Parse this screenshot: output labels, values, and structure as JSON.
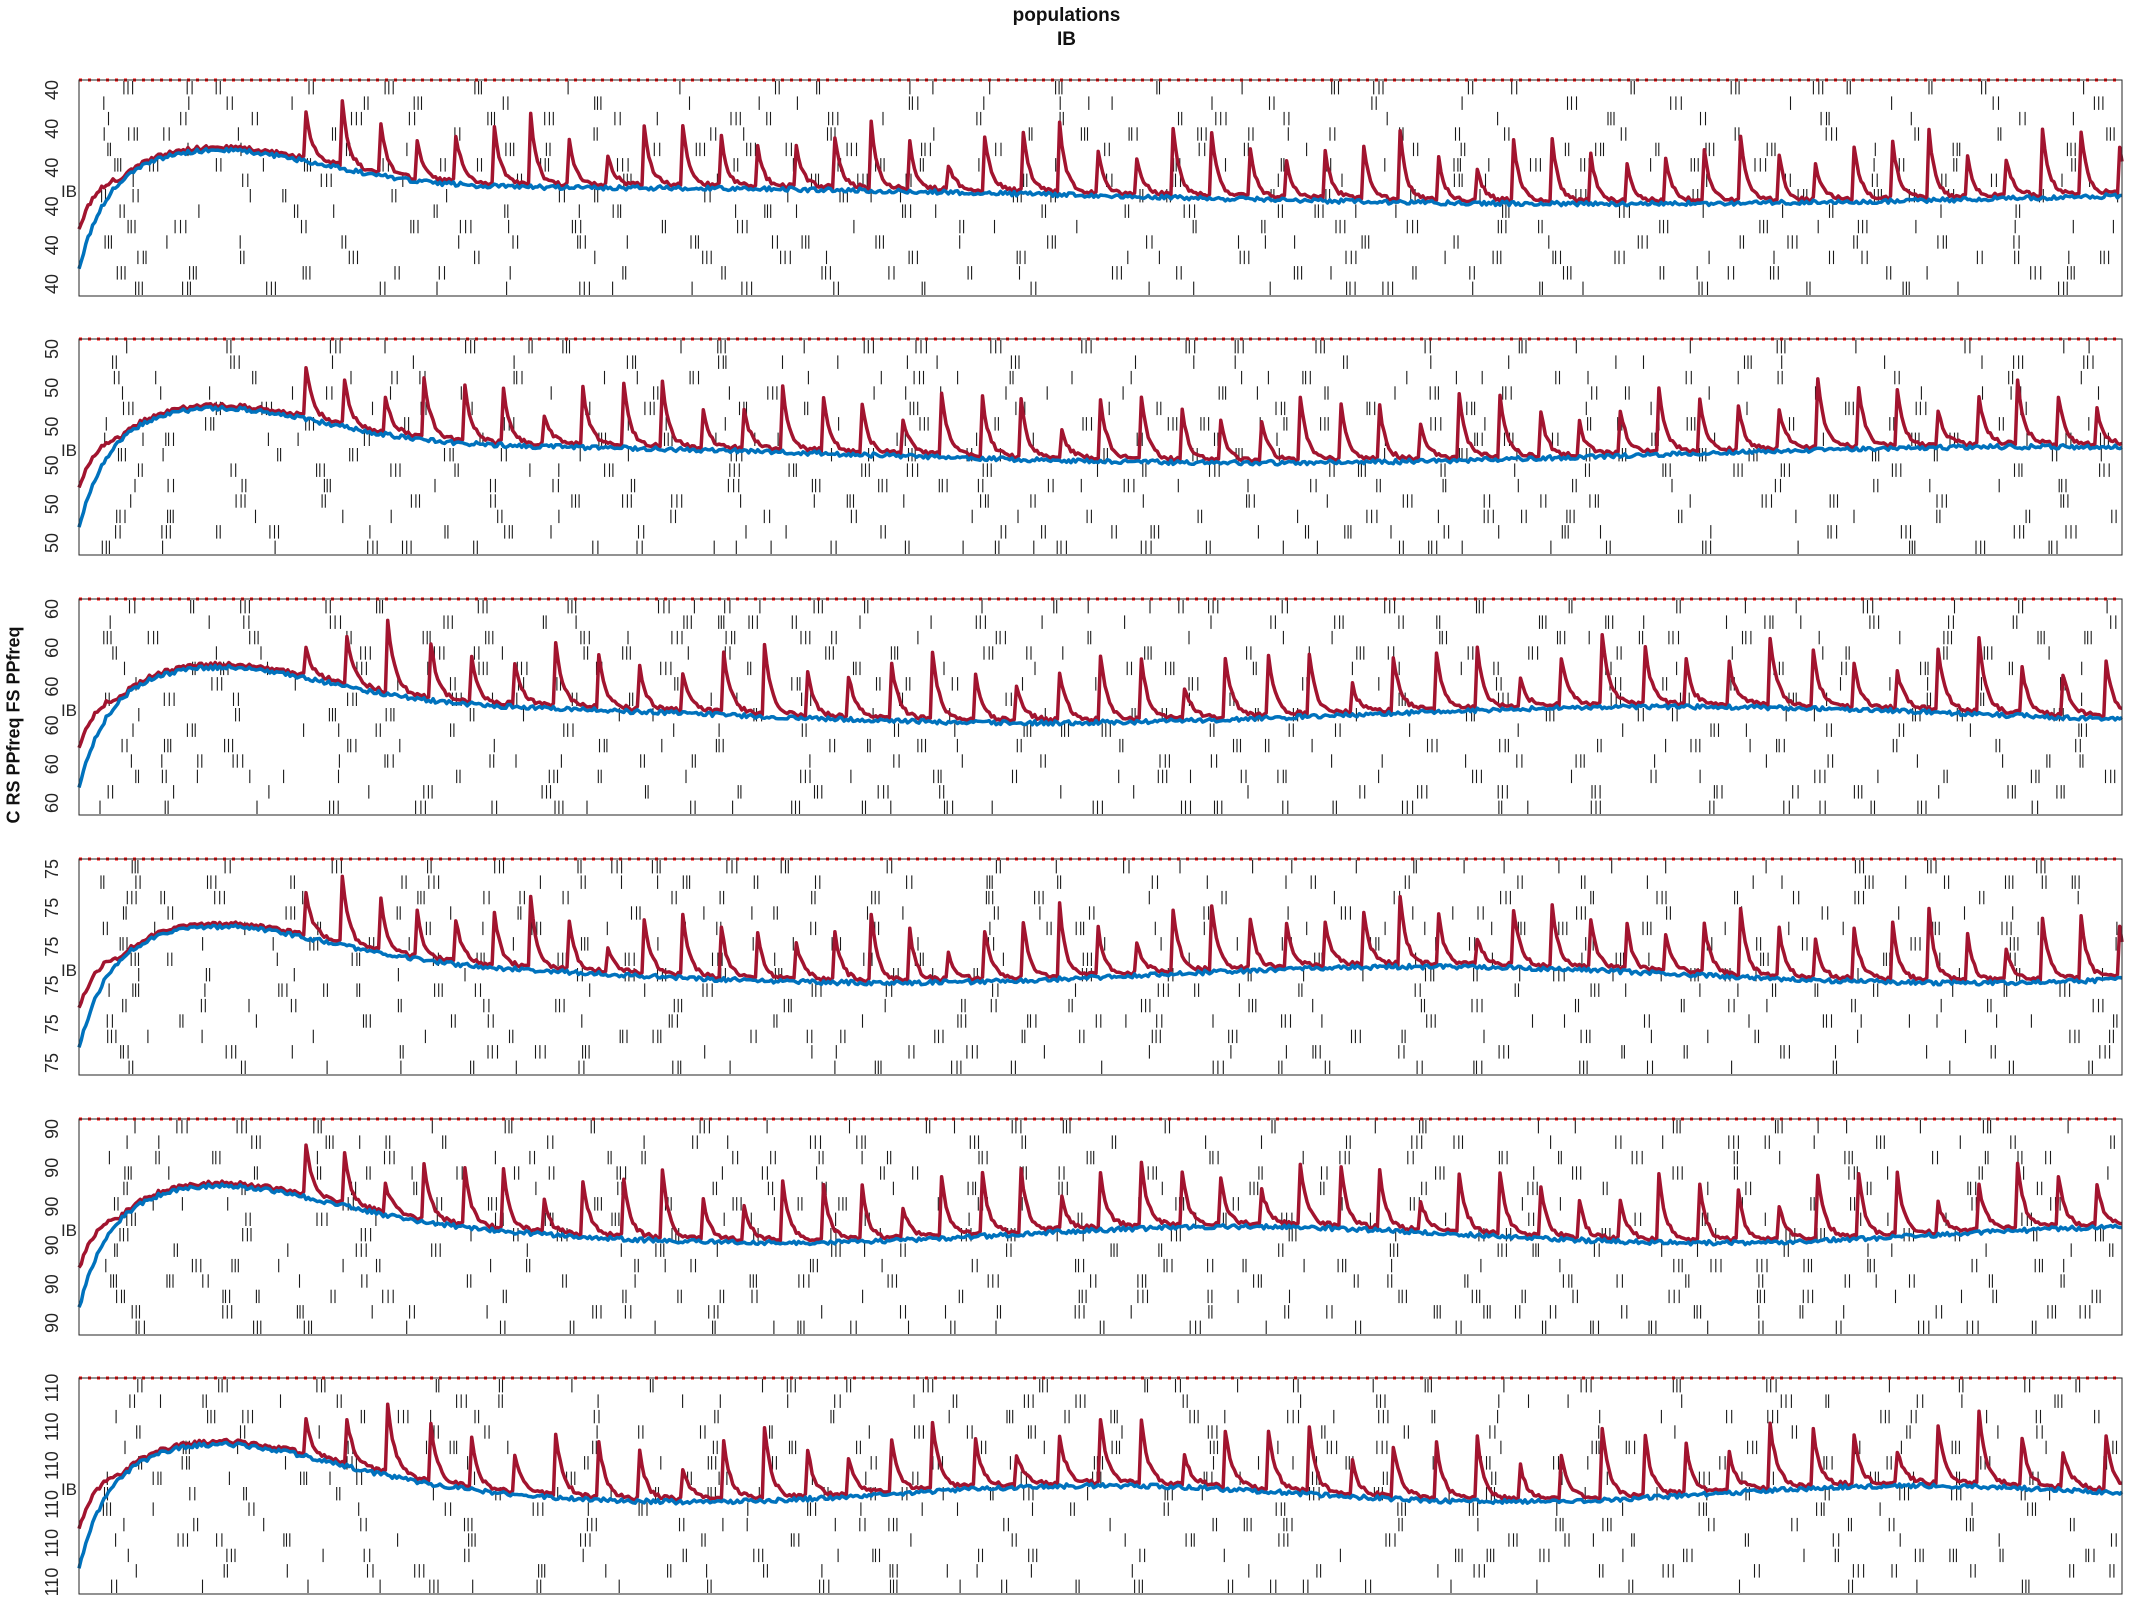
{
  "title": {
    "line1": "populations",
    "line2": "IB"
  },
  "ylabel": "C RS PPfreq FS PPfreq",
  "colors": {
    "red_trace": "#A2142F",
    "blue_trace": "#0072BD",
    "threshold": "#FF0000",
    "raster": "#1a1a1a",
    "axes": "#262626"
  },
  "chart_data": {
    "type": "line",
    "description_free": true,
    "x_ticks": "none",
    "series_style": [
      {
        "key": "red",
        "color": "#A2142F"
      },
      {
        "key": "blue",
        "color": "#0072BD"
      },
      {
        "key": "threshold",
        "color": "#FF0000",
        "style": "dotted"
      }
    ],
    "panels": [
      {
        "tick_value": "40",
        "tick_count": 6,
        "population_label": "IB"
      },
      {
        "tick_value": "50",
        "tick_count": 6,
        "population_label": "IB"
      },
      {
        "tick_value": "60",
        "tick_count": 6,
        "population_label": "IB"
      },
      {
        "tick_value": "75",
        "tick_count": 6,
        "population_label": "IB"
      },
      {
        "tick_value": "90",
        "tick_count": 6,
        "population_label": "IB"
      },
      {
        "tick_value": "110",
        "tick_count": 6,
        "population_label": "IB"
      }
    ]
  }
}
